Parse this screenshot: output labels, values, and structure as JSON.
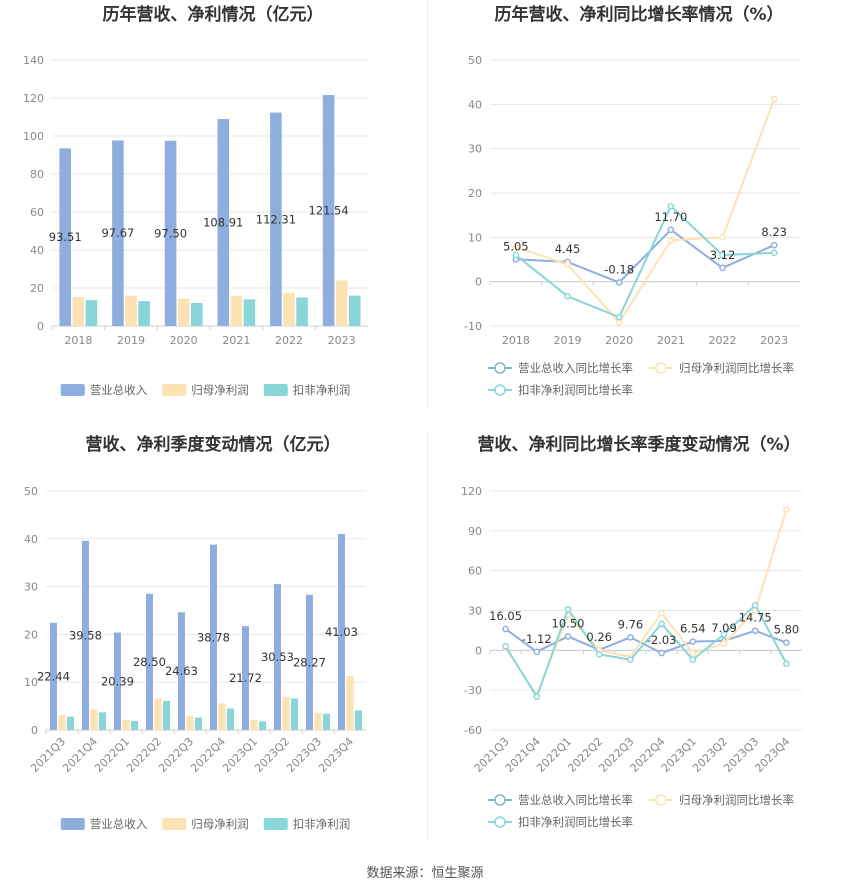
{
  "source": "数据来源：恒生聚源",
  "colors": {
    "revenue": "#8eaedd",
    "net": "#fde2b4",
    "deducted": "#88d6d8",
    "revenue_line": "#8eaedd",
    "net_line": "#fde2b4",
    "deducted_line": "#88d6d8"
  },
  "chart_data": [
    {
      "type": "bar",
      "title": "历年营收、净利情况（亿元）",
      "categories": [
        "2018",
        "2019",
        "2020",
        "2021",
        "2022",
        "2023"
      ],
      "ylim": [
        0,
        140
      ],
      "yticks": [
        "0",
        "20",
        "40",
        "60",
        "80",
        "100",
        "120",
        "140"
      ],
      "series": [
        {
          "name": "营业总收入",
          "values": [
            93.51,
            97.67,
            97.5,
            108.91,
            112.31,
            121.54
          ],
          "labels": [
            "93.51",
            "97.67",
            "97.50",
            "108.91",
            "112.31",
            "121.54"
          ]
        },
        {
          "name": "归母净利润",
          "values": [
            15.2,
            15.9,
            14.4,
            15.8,
            17.4,
            24.0
          ]
        },
        {
          "name": "扣非净利润",
          "values": [
            13.6,
            13.1,
            12.1,
            14.0,
            15.0,
            16.0
          ]
        }
      ],
      "legend": "bottom"
    },
    {
      "type": "line",
      "title": "历年营收、净利同比增长率情况（%）",
      "categories": [
        "2018",
        "2019",
        "2020",
        "2021",
        "2022",
        "2023"
      ],
      "ylim": [
        -10,
        50
      ],
      "yticks": [
        "-10",
        "0",
        "10",
        "20",
        "30",
        "40",
        "50"
      ],
      "series": [
        {
          "name": "营业总收入同比增长率",
          "values": [
            5.05,
            4.45,
            -0.18,
            11.7,
            3.12,
            8.23
          ],
          "labels": [
            "5.05",
            "4.45",
            "-0.18",
            "11.70",
            "3.12",
            "8.23"
          ]
        },
        {
          "name": "归母净利润同比增长率",
          "values": [
            7.8,
            3.9,
            -9.2,
            9.3,
            10.0,
            41.2
          ]
        },
        {
          "name": "扣非净利润同比增长率",
          "values": [
            6.0,
            -3.3,
            -8.0,
            17.0,
            6.0,
            6.5
          ]
        }
      ],
      "legend": "bottom"
    },
    {
      "type": "bar",
      "title": "营收、净利季度变动情况（亿元）",
      "categories": [
        "2021Q3",
        "2021Q4",
        "2022Q1",
        "2022Q2",
        "2022Q3",
        "2022Q4",
        "2023Q1",
        "2023Q2",
        "2023Q3",
        "2023Q4"
      ],
      "ylim": [
        0,
        50
      ],
      "yticks": [
        "0",
        "10",
        "20",
        "30",
        "40",
        "50"
      ],
      "series": [
        {
          "name": "营业总收入",
          "values": [
            22.44,
            39.58,
            20.39,
            28.5,
            24.63,
            38.78,
            21.72,
            30.53,
            28.27,
            41.03
          ],
          "labels": [
            "22.44",
            "39.58",
            "20.39",
            "28.50",
            "24.63",
            "38.78",
            "21.72",
            "30.53",
            "28.27",
            "41.03"
          ]
        },
        {
          "name": "归母净利润",
          "values": [
            3.1,
            4.3,
            2.1,
            6.6,
            2.9,
            5.6,
            2.1,
            6.9,
            3.6,
            11.3
          ]
        },
        {
          "name": "扣非净利润",
          "values": [
            2.8,
            3.7,
            1.9,
            6.1,
            2.6,
            4.5,
            1.8,
            6.6,
            3.4,
            4.1
          ]
        }
      ],
      "legend": "bottom"
    },
    {
      "type": "line",
      "title": "营收、净利同比增长率季度变动情况（%）",
      "categories": [
        "2021Q3",
        "2021Q4",
        "2022Q1",
        "2022Q2",
        "2022Q3",
        "2022Q4",
        "2023Q1",
        "2023Q2",
        "2023Q3",
        "2023Q4"
      ],
      "ylim": [
        -60,
        120
      ],
      "yticks": [
        "-60",
        "-30",
        "0",
        "30",
        "60",
        "90",
        "120"
      ],
      "series": [
        {
          "name": "营业总收入同比增长率",
          "values": [
            16.05,
            -1.12,
            10.5,
            0.26,
            9.76,
            -2.03,
            6.54,
            7.09,
            14.75,
            5.8
          ],
          "labels": [
            "16.05",
            "-1.12",
            "10.50",
            "0.26",
            "9.76",
            "-2.03",
            "6.54",
            "7.09",
            "14.75",
            "5.80"
          ]
        },
        {
          "name": "归母净利润同比增长率",
          "values": [
            2.0,
            -34.0,
            27.0,
            0.0,
            -5.0,
            28.0,
            -2.0,
            5.0,
            30.0,
            106.0
          ]
        },
        {
          "name": "扣非净利润同比增长率",
          "values": [
            3.0,
            -35.0,
            31.0,
            -3.0,
            -7.0,
            20.0,
            -7.0,
            12.0,
            34.0,
            -10.0
          ]
        }
      ],
      "legend": "bottom"
    }
  ]
}
